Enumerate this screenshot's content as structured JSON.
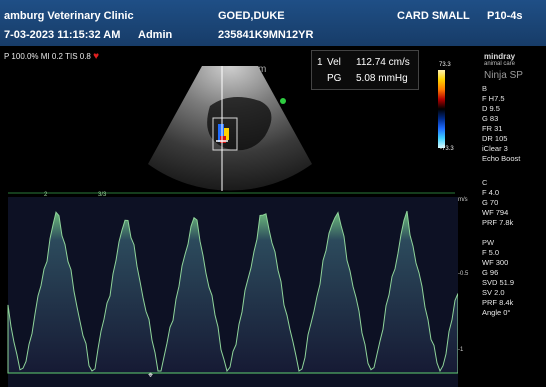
{
  "header": {
    "clinic": "amburg Veterinary Clinic",
    "date_time": "7-03-2023  11:15:32 AM",
    "operator": "Admin",
    "patient_name": "GOED,DUKE",
    "patient_id": "235841K9MN12YR",
    "preset": "CARD SMALL",
    "probe": "P10-4s"
  },
  "acoustic": {
    "text": "P 100.0%  MI 0.2  TIS 0.8"
  },
  "measurement": {
    "index": "1",
    "vel_label": "Vel",
    "vel_value": "112.74 cm/s",
    "pg_label": "PG",
    "pg_value": "5.08 mmHg"
  },
  "brand": {
    "logo": "mindray",
    "logo_sub": "animal care",
    "model": "Ninja SP"
  },
  "color_scale": {
    "high": "73.3",
    "low": "-73.3"
  },
  "b_mode": {
    "title": "B",
    "items": [
      "F H7.5",
      "D 9.5",
      "G 83",
      "FR 31",
      "DR 105",
      "iClear 3",
      "Echo Boost"
    ]
  },
  "color_mode": {
    "title": "C",
    "items": [
      "F 4.0",
      "G 70",
      "WF 794",
      "PRF 7.8k"
    ]
  },
  "pw_mode": {
    "title": "PW",
    "items": [
      "F 5.0",
      "WF 300",
      "G 96",
      "SVD 51.9",
      "SV 2.0",
      "PRF 8.4k",
      "Angle 0°"
    ]
  },
  "spectrum_scale": {
    "unit": "m/s",
    "mid": "-0.5",
    "bottom": "-1"
  },
  "timeline": {
    "marker_left": "2",
    "marker_right": "3/3"
  },
  "colors": {
    "header_bg": "#1f4f86",
    "doppler_fill": "#1a1f3a",
    "doppler_envelope": "#7fc98a",
    "heart": "#e02020"
  }
}
